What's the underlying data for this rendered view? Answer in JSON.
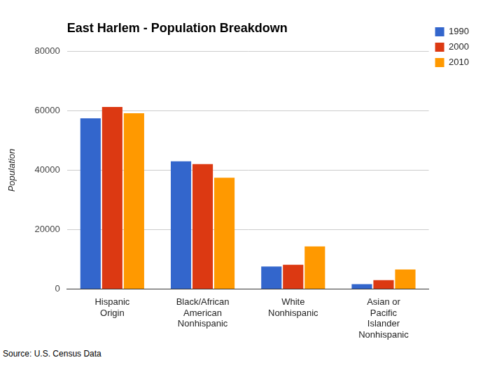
{
  "chart_data": {
    "type": "bar",
    "title": "East Harlem - Population Breakdown",
    "y_label": "Population",
    "source": "Source: U.S. Census Data",
    "categories": [
      "Hispanic Origin",
      "Black/African American Nonhispanic",
      "White Nonhispanic",
      "Asian or Pacific Islander Nonhispanic"
    ],
    "series": [
      {
        "name": "1990",
        "color": "#3366cc",
        "values": [
          57500,
          43000,
          7600,
          1700
        ]
      },
      {
        "name": "2000",
        "color": "#dc3912",
        "values": [
          61300,
          42100,
          8200,
          3000
        ]
      },
      {
        "name": "2010",
        "color": "#ff9900",
        "values": [
          59200,
          37500,
          14400,
          6600
        ]
      }
    ],
    "ylim": [
      0,
      80000
    ],
    "yticks": [
      0,
      20000,
      40000,
      60000,
      80000
    ],
    "grid": true,
    "legend": "upper right"
  }
}
